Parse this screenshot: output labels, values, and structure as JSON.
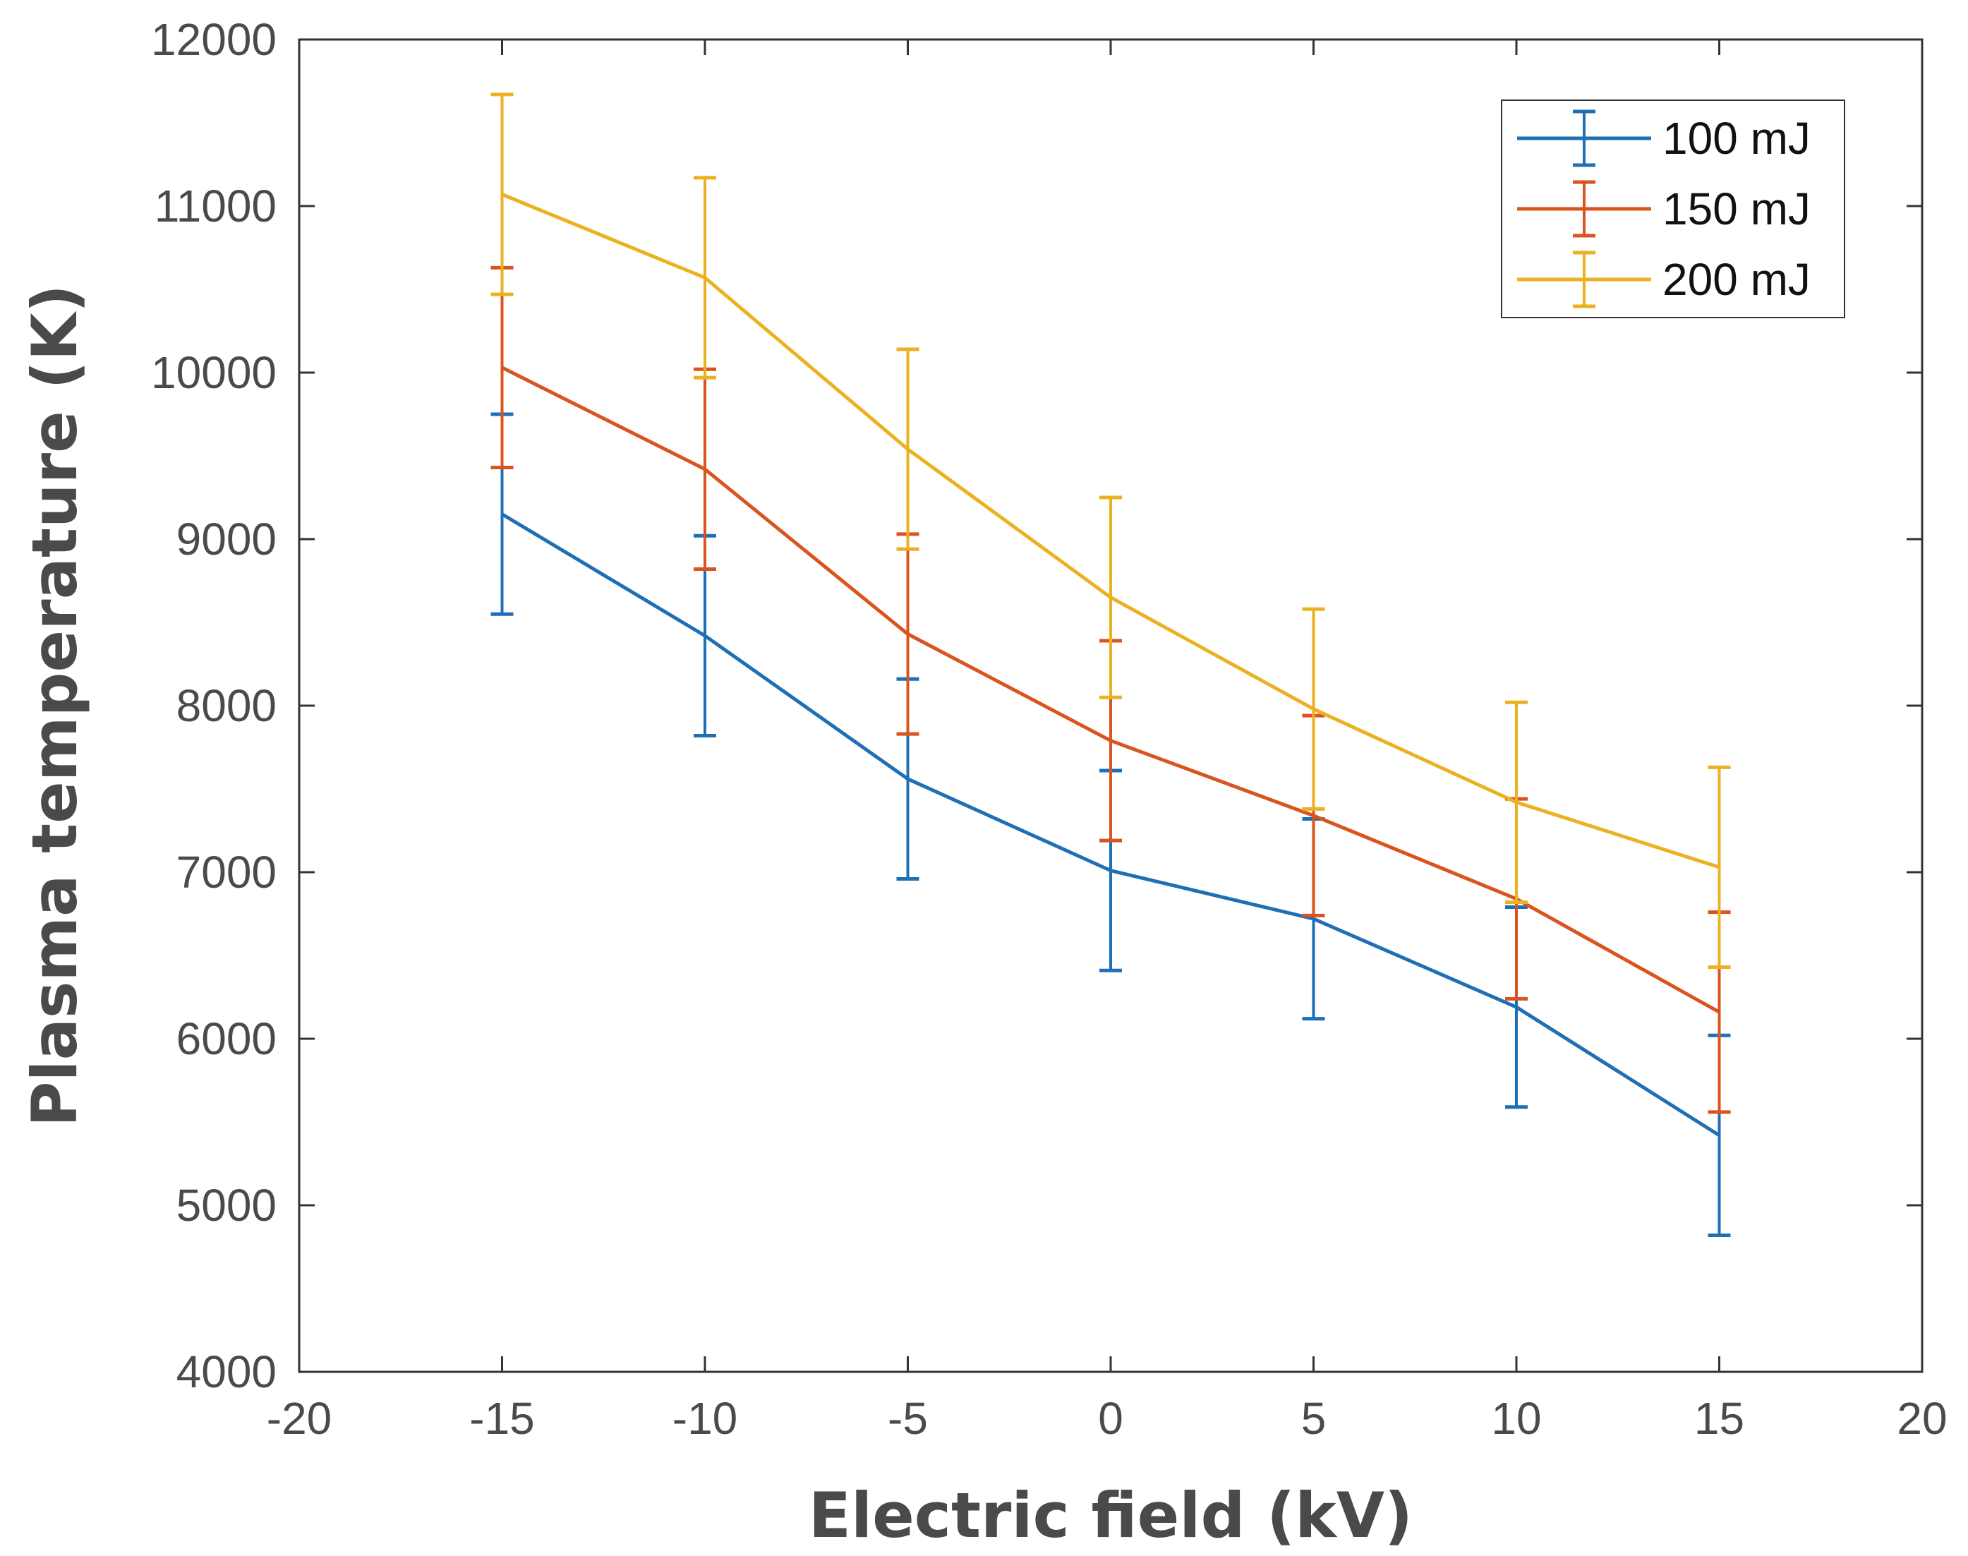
{
  "chart_data": {
    "type": "line",
    "title": "",
    "xlabel": "Electric field (kV)",
    "ylabel": "Plasma temperature (K)",
    "xlim": [
      -20,
      20
    ],
    "ylim": [
      4000,
      12000
    ],
    "x_ticks": [
      "-20",
      "-15",
      "-10",
      "-5",
      "0",
      "5",
      "10",
      "15",
      "20"
    ],
    "y_ticks": [
      "4000",
      "5000",
      "6000",
      "7000",
      "8000",
      "9000",
      "10000",
      "11000",
      "12000"
    ],
    "x": [
      -15,
      -10,
      -5,
      0,
      5,
      10,
      15
    ],
    "error_bars": true,
    "grid": false,
    "legend_position": "top-right",
    "series": [
      {
        "name": "100 mJ",
        "color": "#1f6fb4",
        "values": [
          9150,
          8420,
          7560,
          7010,
          6720,
          6190,
          5420
        ],
        "errors": [
          600,
          600,
          600,
          600,
          600,
          600,
          600
        ]
      },
      {
        "name": "150 mJ",
        "color": "#d9541e",
        "values": [
          10030,
          9420,
          8430,
          7790,
          7340,
          6840,
          6160
        ],
        "errors": [
          600,
          600,
          600,
          600,
          600,
          600,
          600
        ]
      },
      {
        "name": "200 mJ",
        "color": "#ebb120",
        "values": [
          11070,
          10570,
          9540,
          8650,
          7980,
          7420,
          7030
        ],
        "errors": [
          600,
          600,
          600,
          600,
          600,
          600,
          600
        ]
      }
    ]
  }
}
